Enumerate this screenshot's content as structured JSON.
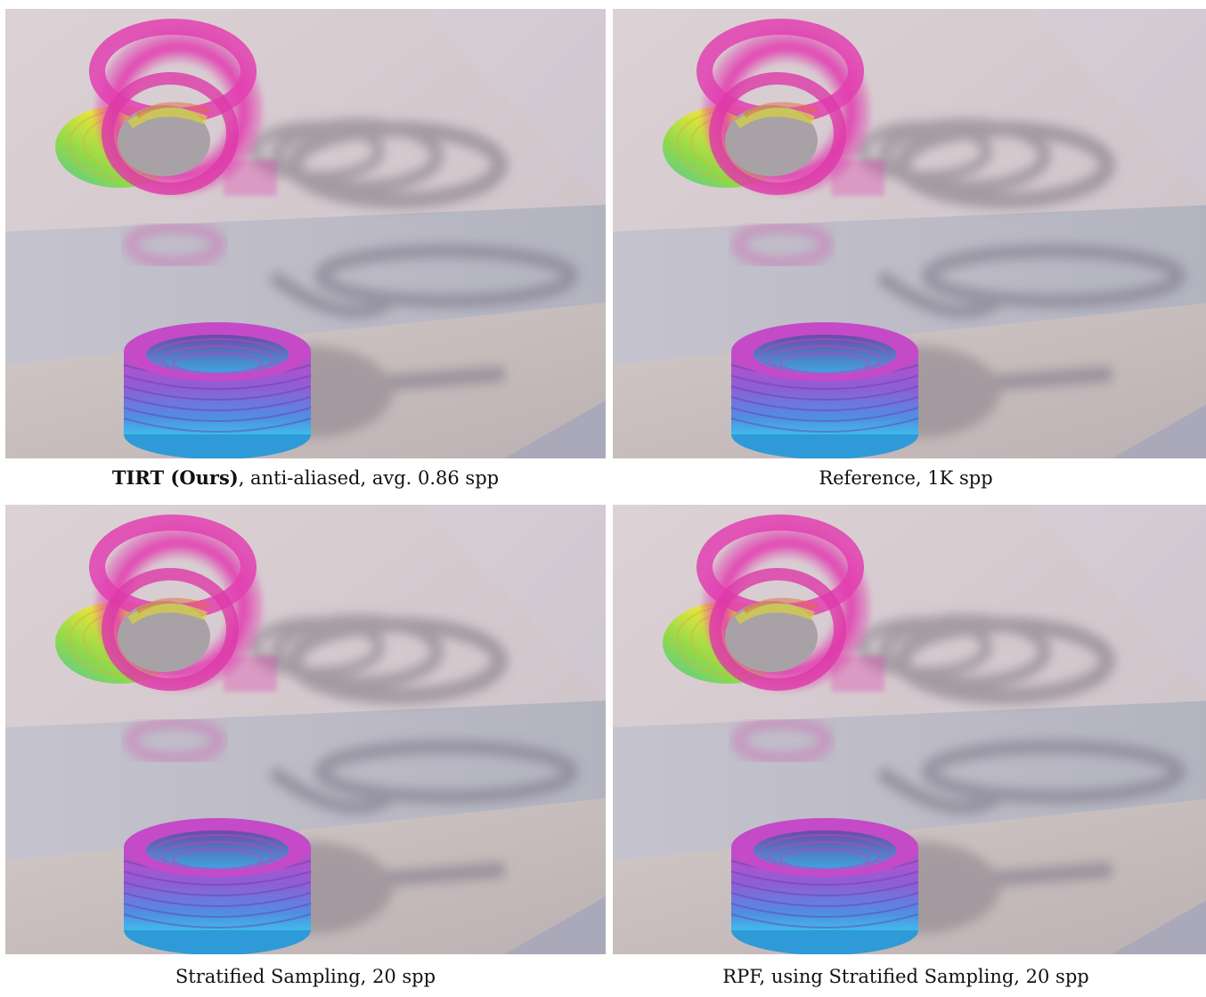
{
  "figure": {
    "panels": [
      {
        "caption_bold": "TIRT (Ours)",
        "caption_rest": ", anti-aliased, avg. 0.86 spp"
      },
      {
        "caption_bold": "",
        "caption_rest": "Reference, 1K spp"
      },
      {
        "caption_bold": "",
        "caption_rest": "Stratified Sampling, 20 spp"
      },
      {
        "caption_bold": "",
        "caption_rest": "RPF, using Stratified Sampling, 20 spp"
      }
    ],
    "colors": {
      "floor_top": "#d9cfd3",
      "floor_mid": "#bdbdc8",
      "floor_bottom": "#c9bfbf",
      "ring_magenta": "#e23fb0",
      "ring_blue": "#3fbbe8",
      "ring_yellow": "#e6e53a",
      "ring_green": "#62cc55"
    }
  }
}
